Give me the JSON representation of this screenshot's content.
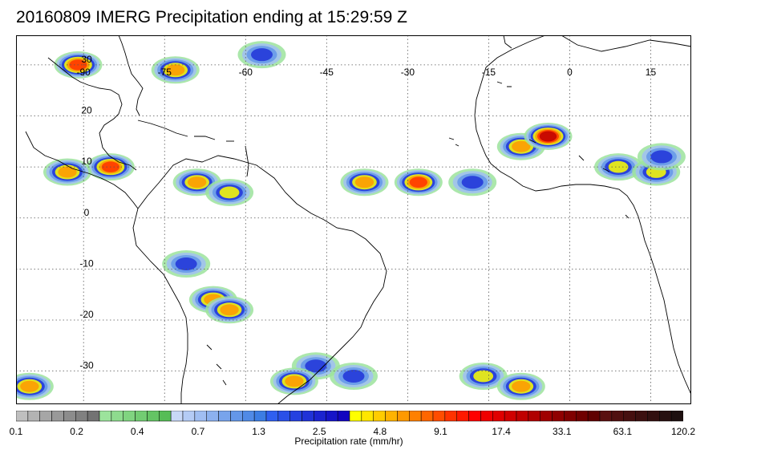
{
  "title": "20160809 IMERG Precipitation ending at 15:29:59 Z",
  "map": {
    "lon_labels": [
      "-90",
      "-75",
      "-60",
      "-45",
      "-30",
      "-15",
      "0",
      "15"
    ],
    "lat_labels": [
      "30",
      "20",
      "10",
      "0",
      "-10",
      "-20",
      "-30"
    ],
    "land_color": "#ffffff",
    "grid_style": "dotted"
  },
  "colorbar": {
    "tick_labels": [
      "0.1",
      "0.2",
      "0.4",
      "0.7",
      "1.3",
      "2.5",
      "4.8",
      "9.1",
      "17.4",
      "33.1",
      "63.1",
      "120.2"
    ],
    "title": "Precipitation rate (mm/hr)",
    "colors": [
      "#bfbfbf",
      "#b3b3b3",
      "#a6a6a6",
      "#999999",
      "#8c8c8c",
      "#808080",
      "#737373",
      "#9ce39c",
      "#8edb8e",
      "#80d480",
      "#72cc72",
      "#64c464",
      "#56bd56",
      "#c8d8f8",
      "#b4cbf5",
      "#a0bef2",
      "#8cb1ef",
      "#78a4ec",
      "#6497e9",
      "#508ae6",
      "#3c7de3",
      "#2f5ff0",
      "#2a50e8",
      "#2541e0",
      "#2032d8",
      "#1b23d0",
      "#1614c8",
      "#1205c0",
      "#ffff00",
      "#ffe600",
      "#ffcc00",
      "#ffb300",
      "#ff9900",
      "#ff8000",
      "#ff6600",
      "#ff4d00",
      "#ff3300",
      "#ff1a00",
      "#ff0000",
      "#f00000",
      "#e00000",
      "#d00000",
      "#c00000",
      "#b00000",
      "#a00000",
      "#900000",
      "#800000",
      "#700000",
      "#600000",
      "#5a1010",
      "#501010",
      "#461010",
      "#3c1010",
      "#321010",
      "#281010",
      "#1e1010"
    ]
  },
  "features": {
    "rain_cells": [
      {
        "lon": -91,
        "lat": 30,
        "rate": 20
      },
      {
        "lon": -73,
        "lat": 29,
        "rate": 15
      },
      {
        "lon": -57,
        "lat": 32,
        "rate": 3
      },
      {
        "lon": -85,
        "lat": 10,
        "rate": 20
      },
      {
        "lon": -93,
        "lat": 9,
        "rate": 10
      },
      {
        "lon": -69,
        "lat": 7,
        "rate": 12
      },
      {
        "lon": -63,
        "lat": 5,
        "rate": 8
      },
      {
        "lon": -38,
        "lat": 7,
        "rate": 15
      },
      {
        "lon": -28,
        "lat": 7,
        "rate": 20
      },
      {
        "lon": -18,
        "lat": 7,
        "rate": 4
      },
      {
        "lon": -9,
        "lat": 14,
        "rate": 12
      },
      {
        "lon": -4,
        "lat": 16,
        "rate": 40
      },
      {
        "lon": 9,
        "lat": 10,
        "rate": 5
      },
      {
        "lon": 16,
        "lat": 9,
        "rate": 5
      },
      {
        "lon": 17,
        "lat": 12,
        "rate": 3
      },
      {
        "lon": -66,
        "lat": -16,
        "rate": 15
      },
      {
        "lon": -63,
        "lat": -18,
        "rate": 10
      },
      {
        "lon": -47,
        "lat": -29,
        "rate": 4
      },
      {
        "lon": -40,
        "lat": -31,
        "rate": 4
      },
      {
        "lon": -51,
        "lat": -32,
        "rate": 10
      },
      {
        "lon": -16,
        "lat": -31,
        "rate": 5
      },
      {
        "lon": -9,
        "lat": -33,
        "rate": 10
      },
      {
        "lon": -100,
        "lat": -33,
        "rate": 10
      },
      {
        "lon": -71,
        "lat": -9,
        "rate": 3
      }
    ]
  }
}
